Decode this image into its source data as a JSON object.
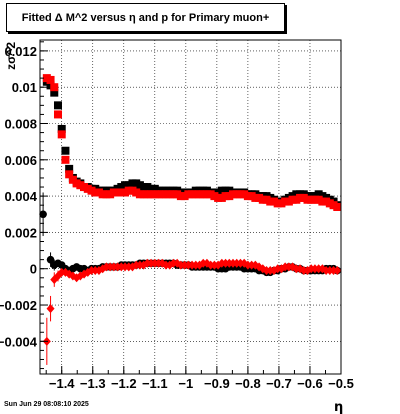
{
  "title": "Fitted Δ M^2 versus η and p for Primary muon+",
  "timestamp": "Sun Jun 29 08:08:10 2025",
  "chart_data": {
    "type": "scatter",
    "title": "Fitted Δ M^2 versus η and p for Primary muon+",
    "xlabel": "η",
    "ylabel": "zσ^2",
    "xlim": [
      -1.47,
      -0.5
    ],
    "ylim": [
      -0.0058,
      0.0126
    ],
    "x_ticks": [
      -1.4,
      -1.3,
      -1.2,
      -1.1,
      -1,
      -0.9,
      -0.8,
      -0.7,
      -0.6,
      -0.5
    ],
    "x_tick_labels": [
      "−1.4",
      "−1.3",
      "−1.2",
      "−1.1",
      "−1",
      "−0.9",
      "−0.8",
      "−0.7",
      "−0.6",
      "−0.5"
    ],
    "y_ticks": [
      -0.004,
      -0.002,
      0,
      0.002,
      0.004,
      0.006,
      0.008,
      0.01,
      0.012
    ],
    "y_tick_labels": [
      "−0.004",
      "−0.002",
      "0",
      "0.002",
      "0.004",
      "0.006",
      "0.008",
      "0.01",
      "0.012"
    ],
    "grid": true,
    "colors": {
      "black_series": "#000000",
      "red_series": "#ff0000"
    },
    "series": [
      {
        "color": "#000000",
        "marker": "square",
        "x": [
          -1.448,
          -1.436,
          -1.424,
          -1.412,
          -1.4,
          -1.388,
          -1.376,
          -1.364,
          -1.352,
          -1.34,
          -1.328,
          -1.316,
          -1.304,
          -1.292,
          -1.28,
          -1.268,
          -1.256,
          -1.244,
          -1.232,
          -1.22,
          -1.208,
          -1.196,
          -1.184,
          -1.172,
          -1.16,
          -1.148,
          -1.136,
          -1.124,
          -1.112,
          -1.1,
          -1.088,
          -1.076,
          -1.064,
          -1.052,
          -1.04,
          -1.028,
          -1.016,
          -1.004,
          -0.992,
          -0.98,
          -0.968,
          -0.956,
          -0.944,
          -0.932,
          -0.92,
          -0.908,
          -0.896,
          -0.884,
          -0.872,
          -0.86,
          -0.848,
          -0.836,
          -0.824,
          -0.812,
          -0.8,
          -0.788,
          -0.776,
          -0.764,
          -0.752,
          -0.74,
          -0.728,
          -0.716,
          -0.704,
          -0.692,
          -0.68,
          -0.668,
          -0.656,
          -0.644,
          -0.632,
          -0.62,
          -0.608,
          -0.596,
          -0.584,
          -0.572,
          -0.56,
          -0.548,
          -0.536,
          -0.524,
          -0.512
        ],
        "y": [
          0.0103,
          0.0101,
          0.0097,
          0.009,
          0.0077,
          0.0065,
          0.0055,
          0.005,
          0.0048,
          0.0047,
          0.0045,
          0.0045,
          0.0044,
          0.0044,
          0.0043,
          0.0043,
          0.0043,
          0.0043,
          0.0043,
          0.0044,
          0.0045,
          0.0046,
          0.0046,
          0.0047,
          0.0047,
          0.0046,
          0.0045,
          0.0045,
          0.0044,
          0.0044,
          0.0043,
          0.0043,
          0.0043,
          0.0043,
          0.0043,
          0.0043,
          0.0042,
          0.0042,
          0.0042,
          0.0042,
          0.0043,
          0.0043,
          0.0043,
          0.0043,
          0.0042,
          0.0042,
          0.0042,
          0.0043,
          0.0043,
          0.0043,
          0.0042,
          0.0042,
          0.0042,
          0.0042,
          0.0041,
          0.0041,
          0.0041,
          0.004,
          0.004,
          0.004,
          0.0039,
          0.0038,
          0.0037,
          0.0037,
          0.0038,
          0.0039,
          0.004,
          0.0041,
          0.0041,
          0.0041,
          0.004,
          0.004,
          0.004,
          0.0041,
          0.004,
          0.0039,
          0.0038,
          0.0037,
          0.0035
        ]
      },
      {
        "color": "#ff0000",
        "marker": "square",
        "x": [
          -1.448,
          -1.436,
          -1.424,
          -1.412,
          -1.4,
          -1.388,
          -1.376,
          -1.364,
          -1.352,
          -1.34,
          -1.328,
          -1.316,
          -1.304,
          -1.292,
          -1.28,
          -1.268,
          -1.256,
          -1.244,
          -1.232,
          -1.22,
          -1.208,
          -1.196,
          -1.184,
          -1.172,
          -1.16,
          -1.148,
          -1.136,
          -1.124,
          -1.112,
          -1.1,
          -1.088,
          -1.076,
          -1.064,
          -1.052,
          -1.04,
          -1.028,
          -1.016,
          -1.004,
          -0.992,
          -0.98,
          -0.968,
          -0.956,
          -0.944,
          -0.932,
          -0.92,
          -0.908,
          -0.896,
          -0.884,
          -0.872,
          -0.86,
          -0.848,
          -0.836,
          -0.824,
          -0.812,
          -0.8,
          -0.788,
          -0.776,
          -0.764,
          -0.752,
          -0.74,
          -0.728,
          -0.716,
          -0.704,
          -0.692,
          -0.68,
          -0.668,
          -0.656,
          -0.644,
          -0.632,
          -0.62,
          -0.608,
          -0.596,
          -0.584,
          -0.572,
          -0.56,
          -0.548,
          -0.536,
          -0.524,
          -0.512
        ],
        "y": [
          0.0105,
          0.0104,
          0.01,
          0.0085,
          0.0074,
          0.006,
          0.0052,
          0.0049,
          0.0047,
          0.0046,
          0.0045,
          0.0044,
          0.0043,
          0.0042,
          0.0042,
          0.0041,
          0.0041,
          0.0041,
          0.0042,
          0.0042,
          0.0042,
          0.0042,
          0.0043,
          0.0043,
          0.0042,
          0.0041,
          0.0041,
          0.0041,
          0.0041,
          0.0041,
          0.0041,
          0.0041,
          0.0041,
          0.0041,
          0.0041,
          0.0041,
          0.004,
          0.004,
          0.0041,
          0.0041,
          0.0041,
          0.0041,
          0.0041,
          0.0041,
          0.0041,
          0.004,
          0.0039,
          0.0039,
          0.004,
          0.004,
          0.0041,
          0.0041,
          0.0041,
          0.0041,
          0.004,
          0.004,
          0.0039,
          0.0039,
          0.0038,
          0.0038,
          0.0037,
          0.0037,
          0.0036,
          0.0036,
          0.0037,
          0.0037,
          0.0038,
          0.0038,
          0.0039,
          0.0039,
          0.0038,
          0.0038,
          0.0038,
          0.0038,
          0.0037,
          0.0037,
          0.0036,
          0.0035,
          0.0034
        ]
      },
      {
        "color": "#000000",
        "marker": "circle",
        "x": [
          -1.46,
          -1.436,
          -1.424,
          -1.412,
          -1.4,
          -1.388,
          -1.376,
          -1.364,
          -1.352,
          -1.34,
          -1.328,
          -1.316,
          -1.304,
          -1.292,
          -1.28,
          -1.268,
          -1.256,
          -1.244,
          -1.232,
          -1.22,
          -1.208,
          -1.196,
          -1.184,
          -1.172,
          -1.16,
          -1.148,
          -1.136,
          -1.124,
          -1.112,
          -1.1,
          -1.088,
          -1.076,
          -1.064,
          -1.052,
          -1.04,
          -1.028,
          -1.016,
          -1.004,
          -0.992,
          -0.98,
          -0.968,
          -0.956,
          -0.944,
          -0.932,
          -0.92,
          -0.908,
          -0.896,
          -0.884,
          -0.872,
          -0.86,
          -0.848,
          -0.836,
          -0.824,
          -0.812,
          -0.8,
          -0.788,
          -0.776,
          -0.764,
          -0.752,
          -0.74,
          -0.728,
          -0.716,
          -0.704,
          -0.692,
          -0.68,
          -0.668,
          -0.656,
          -0.644,
          -0.632,
          -0.62,
          -0.608,
          -0.596,
          -0.584,
          -0.572,
          -0.56,
          -0.548,
          -0.536,
          -0.524,
          -0.512
        ],
        "y": [
          0.003,
          0.0005,
          0.0002,
          0.0003,
          0.0002,
          0.0,
          -0.0001,
          0.0,
          0.0001,
          0.0,
          0.0,
          -0.0001,
          0.0,
          0.0,
          0.0,
          0.0001,
          0.0001,
          0.0001,
          0.0001,
          0.0001,
          0.0002,
          0.0002,
          0.0002,
          0.0002,
          0.0002,
          0.0003,
          0.0003,
          0.0003,
          0.0003,
          0.0003,
          0.0003,
          0.0003,
          0.0003,
          0.0003,
          0.0003,
          0.0002,
          0.0002,
          0.0002,
          0.0002,
          0.0001,
          0.0001,
          0.0001,
          0.0001,
          0.0001,
          0.0001,
          0.0001,
          0.0,
          0.0,
          0.0,
          0.0001,
          0.0001,
          0.0001,
          0.0001,
          0.0,
          0.0,
          0.0,
          0.0,
          -0.0001,
          -0.0001,
          -0.0002,
          -0.0002,
          -0.0001,
          -0.0001,
          0.0,
          0.0,
          0.0001,
          0.0001,
          0.0,
          0.0,
          -0.0001,
          -0.0001,
          -0.0001,
          -0.0001,
          -0.0001,
          -0.0001,
          0.0,
          0.0,
          0.0,
          -0.0001
        ],
        "yerr": [
          0.0012,
          0.0004,
          0.0003,
          0.0002,
          0.0002,
          0.0001,
          0.0001,
          0.0001,
          0.0001,
          0.0001,
          0.0001,
          0.0001,
          0.0001,
          0.0001,
          0.0001,
          0.0001,
          0.0001,
          0.0001,
          0.0001,
          0.0001,
          0.0001,
          0.0001,
          0.0001,
          0.0001,
          0.0001,
          0.0001,
          0.0001,
          0.0001,
          0.0001,
          0.0001,
          0.0001,
          0.0001,
          0.0001,
          0.0001,
          0.0001,
          0.0001,
          0.0001,
          0.0001,
          0.0001,
          0.0001,
          0.0001,
          0.0001,
          0.0001,
          0.0001,
          0.0001,
          0.0001,
          0.0001,
          0.0001,
          0.0001,
          0.0001,
          0.0001,
          0.0001,
          0.0001,
          0.0001,
          0.0001,
          0.0001,
          0.0001,
          0.0001,
          0.0001,
          0.0001,
          0.0001,
          0.0001,
          0.0001,
          0.0001,
          0.0001,
          0.0001,
          0.0001,
          0.0001,
          0.0001,
          0.0001,
          0.0001,
          0.0001,
          0.0001,
          0.0001,
          0.0001,
          0.0001,
          0.0001,
          0.0001,
          0.0001
        ]
      },
      {
        "color": "#ff0000",
        "marker": "diamond",
        "x": [
          -1.448,
          -1.436,
          -1.424,
          -1.412,
          -1.4,
          -1.388,
          -1.376,
          -1.364,
          -1.352,
          -1.34,
          -1.328,
          -1.316,
          -1.304,
          -1.292,
          -1.28,
          -1.268,
          -1.256,
          -1.244,
          -1.232,
          -1.22,
          -1.208,
          -1.196,
          -1.184,
          -1.172,
          -1.16,
          -1.148,
          -1.136,
          -1.124,
          -1.112,
          -1.1,
          -1.088,
          -1.076,
          -1.064,
          -1.052,
          -1.04,
          -1.028,
          -1.016,
          -1.004,
          -0.992,
          -0.98,
          -0.968,
          -0.956,
          -0.944,
          -0.932,
          -0.92,
          -0.908,
          -0.896,
          -0.884,
          -0.872,
          -0.86,
          -0.848,
          -0.836,
          -0.824,
          -0.812,
          -0.8,
          -0.788,
          -0.776,
          -0.764,
          -0.752,
          -0.74,
          -0.728,
          -0.716,
          -0.704,
          -0.692,
          -0.68,
          -0.668,
          -0.656,
          -0.644,
          -0.632,
          -0.62,
          -0.608,
          -0.596,
          -0.584,
          -0.572,
          -0.56,
          -0.548,
          -0.536,
          -0.524,
          -0.512
        ],
        "y": [
          -0.004,
          -0.0022,
          -0.0006,
          -0.0004,
          -0.0002,
          -0.0002,
          -0.0003,
          -0.0004,
          -0.0005,
          -0.0004,
          -0.0003,
          -0.0002,
          -0.0001,
          -0.0001,
          -0.0001,
          0.0,
          0.0001,
          0.0001,
          0.0001,
          0.0001,
          0.0001,
          0.0001,
          0.0001,
          0.0001,
          0.0002,
          0.0002,
          0.0002,
          0.0003,
          0.0003,
          0.0003,
          0.0003,
          0.0003,
          0.0002,
          0.0002,
          0.0003,
          0.0003,
          0.0002,
          0.0002,
          0.0002,
          0.0002,
          0.0002,
          0.0002,
          0.0003,
          0.0003,
          0.0002,
          0.0002,
          0.0002,
          0.0003,
          0.0003,
          0.0003,
          0.0003,
          0.0003,
          0.0003,
          0.0003,
          0.0002,
          0.0002,
          0.0002,
          0.0001,
          0.0,
          -0.0001,
          -0.0001,
          -0.0001,
          0.0,
          0.0,
          0.0001,
          0.0001,
          0.0001,
          0.0,
          0.0,
          -0.0001,
          -0.0001,
          0.0,
          0.0,
          0.0,
          0.0,
          -0.0001,
          -0.0001,
          -0.0001,
          -0.0001
        ],
        "yerr": [
          0.0013,
          0.0007,
          0.0004,
          0.0003,
          0.0002,
          0.0001,
          0.0001,
          0.0001,
          0.0001,
          0.0001,
          0.0001,
          0.0001,
          0.0001,
          0.0001,
          0.0001,
          0.0001,
          0.0001,
          0.0001,
          0.0001,
          0.0001,
          0.0001,
          0.0001,
          0.0001,
          0.0001,
          0.0001,
          0.0001,
          0.0001,
          0.0001,
          0.0001,
          0.0001,
          0.0001,
          0.0001,
          0.0001,
          0.0001,
          0.0001,
          0.0001,
          0.0001,
          0.0001,
          0.0001,
          0.0001,
          0.0001,
          0.0001,
          0.0001,
          0.0001,
          0.0001,
          0.0001,
          0.0001,
          0.0001,
          0.0001,
          0.0001,
          0.0001,
          0.0001,
          0.0001,
          0.0001,
          0.0001,
          0.0001,
          0.0001,
          0.0001,
          0.0001,
          0.0001,
          0.0001,
          0.0001,
          0.0001,
          0.0001,
          0.0001,
          0.0001,
          0.0001,
          0.0001,
          0.0001,
          0.0001,
          0.0001,
          0.0001,
          0.0001,
          0.0001,
          0.0001,
          0.0001,
          0.0001,
          0.0001,
          0.0001
        ]
      }
    ]
  }
}
